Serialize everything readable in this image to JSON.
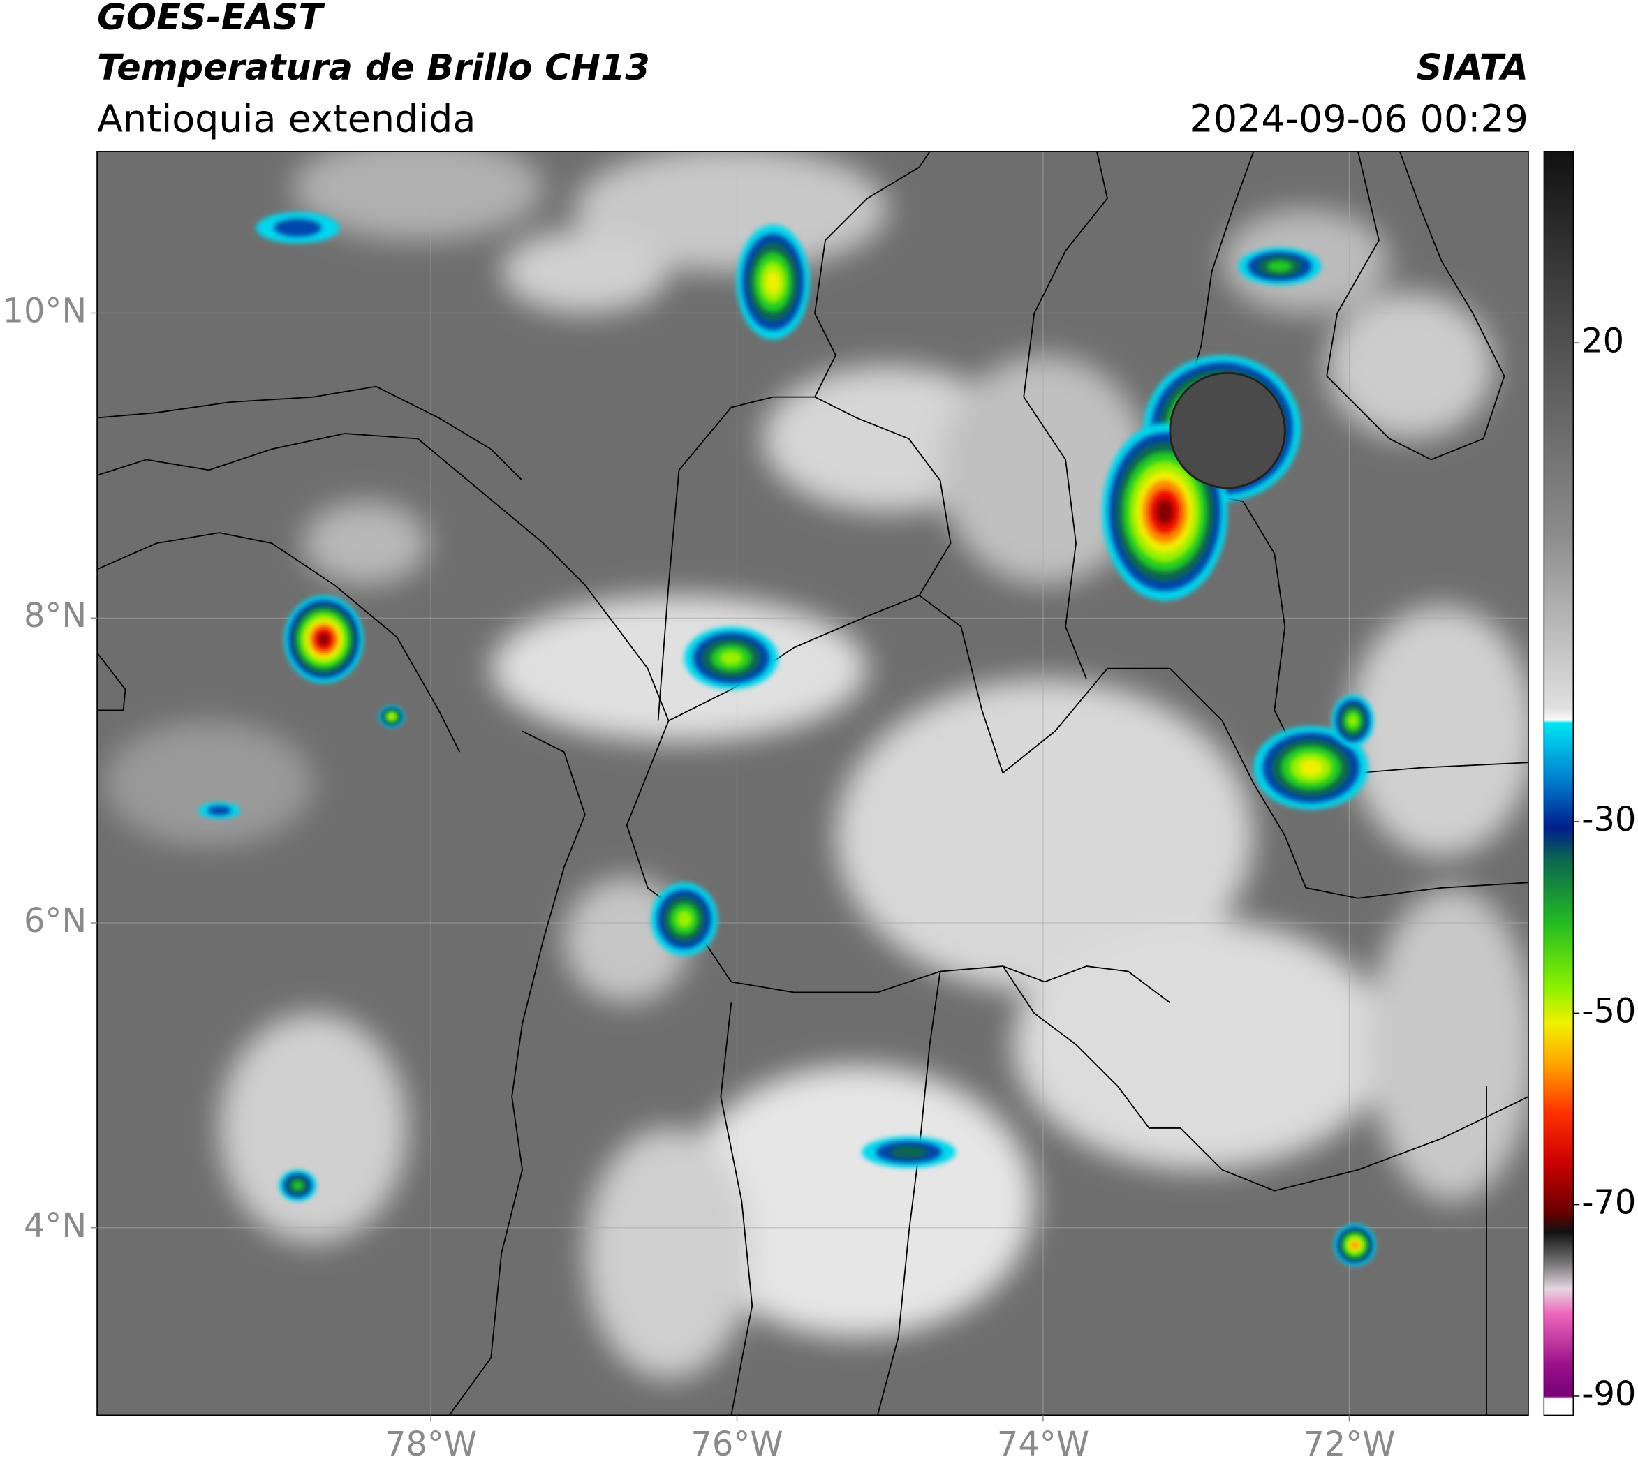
{
  "header": {
    "title": "GOES-EAST",
    "subtitle": "Temperatura de Brillo CH13",
    "region": "Antioquia extendida",
    "source": "SIATA",
    "timestamp": "2024-09-06 00:29"
  },
  "map": {
    "lonlim": [
      -80.18,
      -70.83
    ],
    "latlim": [
      2.77,
      11.06
    ],
    "xticks": [
      {
        "value": -78,
        "label": "78°W"
      },
      {
        "value": -76,
        "label": "76°W"
      },
      {
        "value": -74,
        "label": "74°W"
      },
      {
        "value": -72,
        "label": "72°W"
      }
    ],
    "yticks": [
      {
        "value": 10,
        "label": "10°N"
      },
      {
        "value": 8,
        "label": "8°N"
      },
      {
        "value": 6,
        "label": "6°N"
      },
      {
        "value": 4,
        "label": "4°N"
      }
    ]
  },
  "colorbar": {
    "lim": [
      -92,
      40
    ],
    "ticks": [
      20,
      -30,
      -50,
      -70,
      -90
    ]
  }
}
